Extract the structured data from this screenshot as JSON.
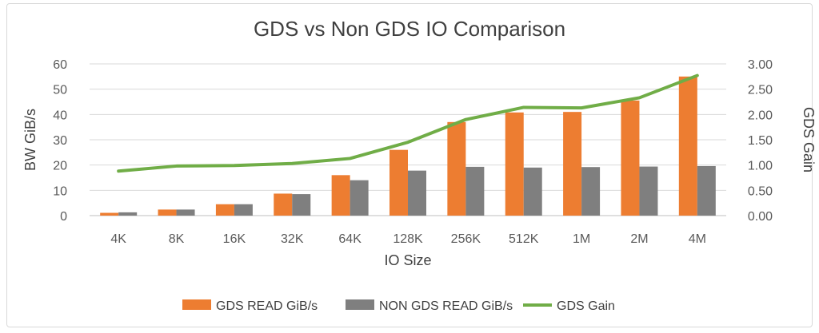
{
  "chart_data": {
    "type": "bar",
    "title": "GDS vs Non GDS IO Comparison",
    "xlabel": "IO Size",
    "ylabel": "BW GiB/s",
    "y2label": "GDS Gain",
    "categories": [
      "4K",
      "8K",
      "16K",
      "32K",
      "64K",
      "128K",
      "256K",
      "512K",
      "1M",
      "2M",
      "4M"
    ],
    "ylim": [
      0,
      60
    ],
    "yticks": [
      "0",
      "10",
      "20",
      "30",
      "40",
      "50",
      "60"
    ],
    "y2lim": [
      0,
      3
    ],
    "y2ticks": [
      "0.00",
      "0.50",
      "1.00",
      "1.50",
      "2.00",
      "2.50",
      "3.00"
    ],
    "grid": true,
    "legend_position": "bottom",
    "series": [
      {
        "name": "GDS READ GiB/s",
        "kind": "bar",
        "axis": "left",
        "color": "#ED7D31",
        "values": [
          1.1,
          2.4,
          4.5,
          8.7,
          16.0,
          26.0,
          37.0,
          40.8,
          41.0,
          45.5,
          55.0
        ]
      },
      {
        "name": "NON GDS READ GiB/s",
        "kind": "bar",
        "axis": "left",
        "color": "#7F7F7F",
        "values": [
          1.3,
          2.4,
          4.5,
          8.5,
          14.0,
          17.8,
          19.3,
          19.0,
          19.2,
          19.4,
          19.6
        ]
      },
      {
        "name": "GDS Gain",
        "kind": "line",
        "axis": "right",
        "color": "#70AD47",
        "values": [
          0.88,
          0.98,
          0.99,
          1.03,
          1.13,
          1.45,
          1.9,
          2.14,
          2.13,
          2.33,
          2.77
        ]
      }
    ]
  }
}
